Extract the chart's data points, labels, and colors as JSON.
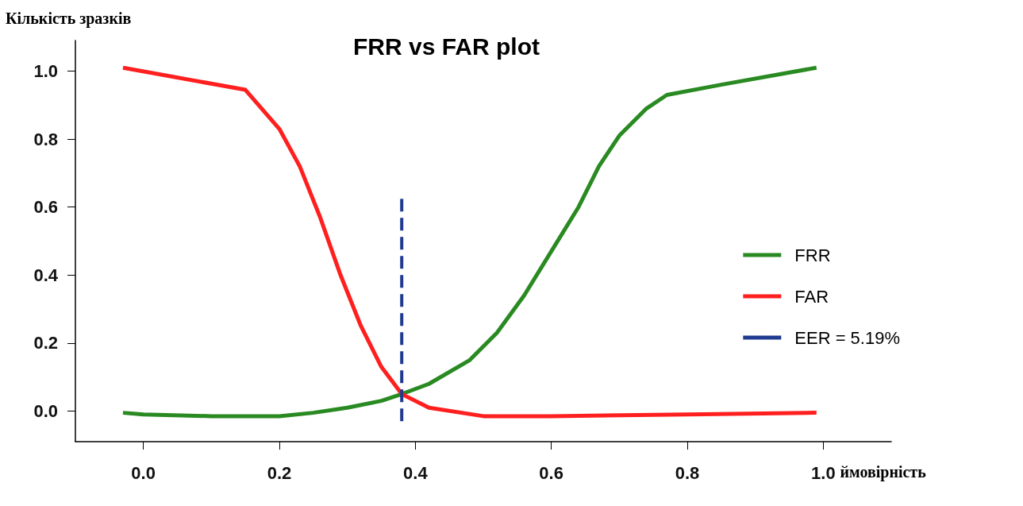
{
  "chart_data": {
    "type": "line",
    "title": "FRR vs FAR plot",
    "xlabel": "ймовірність",
    "ylabel": "Кількість зразків",
    "xlim": [
      -0.1,
      1.1
    ],
    "ylim": [
      -0.09,
      1.09
    ],
    "xticks": [
      {
        "value": 0,
        "label": "0.0"
      },
      0.2,
      0.4,
      0.6,
      0.8,
      {
        "value": 1,
        "label": "1.0"
      }
    ],
    "yticks": [
      {
        "value": 0,
        "label": "0.0"
      },
      0.2,
      0.4,
      0.6,
      0.8,
      {
        "value": 1,
        "label": "1.0"
      }
    ],
    "legend": "right",
    "marker": "none",
    "series": [
      {
        "name": "FRR",
        "color": "#2a8a22",
        "x": [
          -0.03,
          0.0,
          0.1,
          0.2,
          0.25,
          0.3,
          0.35,
          0.38,
          0.42,
          0.48,
          0.52,
          0.56,
          0.6,
          0.64,
          0.67,
          0.7,
          0.74,
          0.77,
          0.85,
          0.99
        ],
        "values": [
          -0.005,
          -0.01,
          -0.015,
          -0.015,
          -0.005,
          0.01,
          0.03,
          0.05,
          0.08,
          0.15,
          0.23,
          0.34,
          0.47,
          0.6,
          0.72,
          0.81,
          0.89,
          0.93,
          0.96,
          1.01
        ]
      },
      {
        "name": "FAR",
        "color": "#ff1f1f",
        "x": [
          -0.03,
          0.15,
          0.2,
          0.23,
          0.26,
          0.29,
          0.32,
          0.35,
          0.38,
          0.42,
          0.5,
          0.6,
          0.8,
          0.99
        ],
        "values": [
          1.01,
          0.945,
          0.83,
          0.72,
          0.57,
          0.4,
          0.25,
          0.13,
          0.05,
          0.01,
          -0.015,
          -0.015,
          -0.01,
          -0.005
        ]
      },
      {
        "name": "EER = 5.19%",
        "color": "#1f3a8f",
        "line_style": "dashed",
        "x": [
          0.38,
          0.38
        ],
        "values": [
          -0.03,
          0.63
        ]
      }
    ]
  }
}
